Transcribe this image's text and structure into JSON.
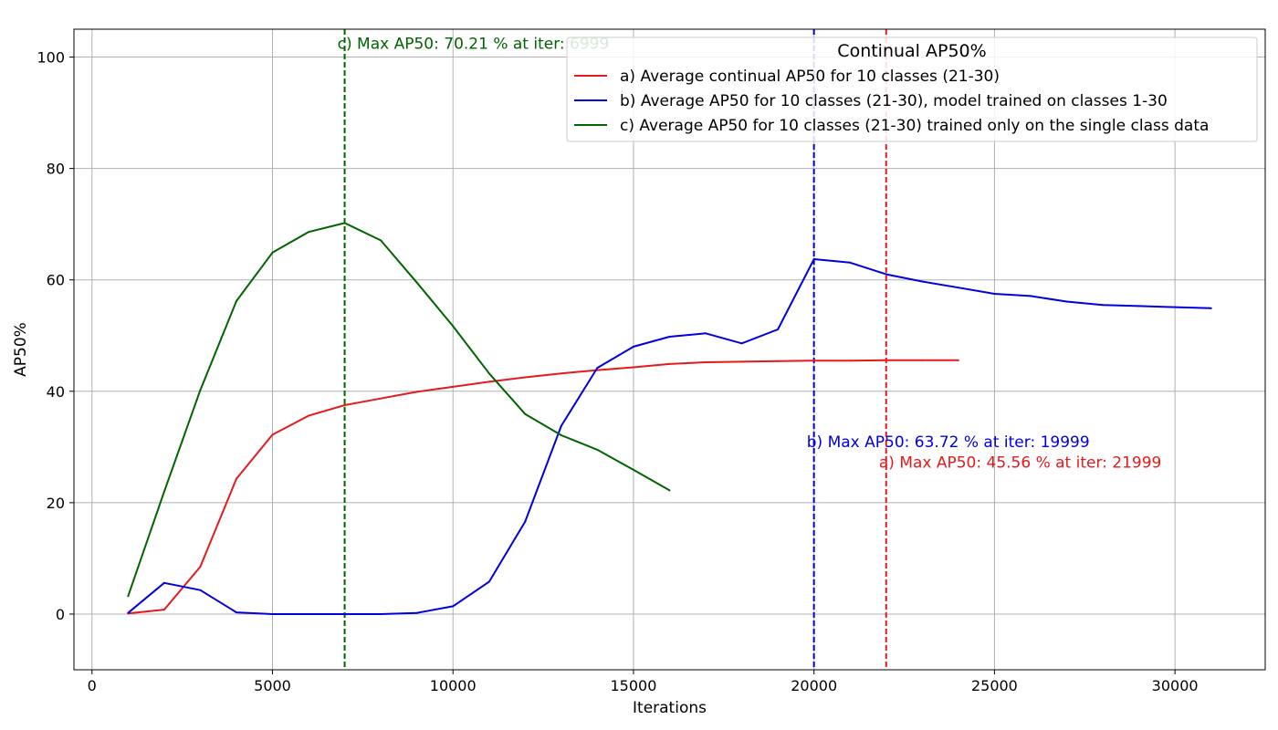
{
  "chart_data": {
    "type": "line",
    "xlabel": "Iterations",
    "ylabel": "AP50%",
    "xlim": [
      -500,
      32500
    ],
    "ylim": [
      -10,
      105
    ],
    "xticks": [
      0,
      5000,
      10000,
      15000,
      20000,
      25000,
      30000
    ],
    "yticks": [
      0,
      20,
      40,
      60,
      80,
      100
    ],
    "grid": true,
    "legend": {
      "title": "Continual AP50%",
      "placement": "top-right"
    },
    "series": [
      {
        "name": "a) Average continual AP50 for 10 classes (21-30)",
        "color": "#e41a1c",
        "x": [
          1000,
          2000,
          3000,
          4000,
          5000,
          6000,
          7000,
          8000,
          9000,
          10000,
          11000,
          12000,
          13000,
          14000,
          15000,
          16000,
          17000,
          18000,
          19000,
          20000,
          21000,
          22000,
          23000,
          24000
        ],
        "y": [
          0.1,
          0.8,
          8.5,
          24.3,
          32.2,
          35.6,
          37.5,
          38.7,
          39.9,
          40.8,
          41.7,
          42.5,
          43.2,
          43.8,
          44.3,
          44.9,
          45.2,
          45.3,
          45.4,
          45.5,
          45.5,
          45.56,
          45.56,
          45.56
        ]
      },
      {
        "name": "b) Average AP50 for 10 classes (21-30), model trained on classes 1-30",
        "color": "#0000dd",
        "x": [
          1000,
          2000,
          3000,
          4000,
          5000,
          6000,
          7000,
          8000,
          9000,
          10000,
          11000,
          12000,
          13000,
          14000,
          15000,
          16000,
          17000,
          18000,
          19000,
          20000,
          21000,
          22000,
          23000,
          24000,
          25000,
          26000,
          27000,
          28000,
          29000,
          30000,
          31000
        ],
        "y": [
          0.2,
          5.6,
          4.3,
          0.3,
          0.0,
          0.0,
          0.0,
          0.0,
          0.2,
          1.4,
          5.8,
          16.6,
          33.8,
          44.2,
          48.0,
          49.8,
          50.4,
          48.6,
          51.1,
          63.72,
          63.1,
          61.0,
          59.7,
          58.6,
          57.5,
          57.1,
          56.1,
          55.5,
          55.3,
          55.1,
          54.9
        ]
      },
      {
        "name": "c) Average AP50 for 10 classes (21-30) trained only on the single class data",
        "color": "#006400",
        "x": [
          1000,
          2000,
          3000,
          4000,
          5000,
          6000,
          7000,
          8000,
          9000,
          10000,
          11000,
          12000,
          13000,
          14000,
          15000,
          16000
        ],
        "y": [
          3.2,
          22.0,
          40.2,
          56.2,
          64.9,
          68.6,
          70.21,
          67.1,
          59.5,
          51.7,
          43.2,
          35.9,
          32.1,
          29.5,
          25.9,
          22.2
        ]
      }
    ],
    "vlines": [
      {
        "x": 6999,
        "color": "#006400",
        "style": "dashed"
      },
      {
        "x": 19999,
        "color": "#0000dd",
        "style": "dashed"
      },
      {
        "x": 21999,
        "color": "#e41a1c",
        "style": "dashed"
      }
    ],
    "annotations": [
      {
        "text": "c) Max AP50: 70.21 % at iter: 6999",
        "x": 6800,
        "y": 101.5,
        "color": "#006400"
      },
      {
        "text": "b) Max AP50: 63.72 % at iter: 19999",
        "x": 19800,
        "y": 30.0,
        "color": "#0000dd"
      },
      {
        "text": "a) Max AP50: 45.56 % at iter: 21999",
        "x": 21800,
        "y": 26.3,
        "color": "#e41a1c"
      }
    ]
  }
}
